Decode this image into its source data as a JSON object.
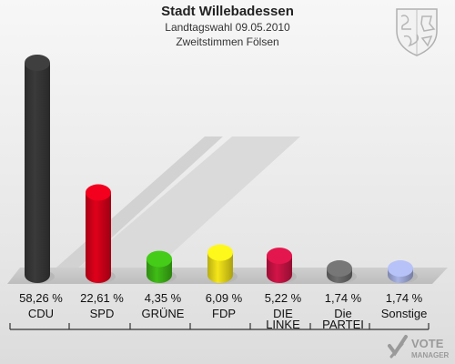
{
  "header": {
    "title": "Stadt Willebadessen",
    "subtitle": "Landtagswahl 09.05.2010",
    "subtitle2": "Zweitstimmen Fölsen"
  },
  "watermark": {
    "line1": "VOTE",
    "line2": "MANAGER"
  },
  "chart_data": {
    "type": "bar",
    "categories": [
      "CDU",
      "SPD",
      "GRÜNE",
      "FDP",
      "DIE LINKE",
      "Die PARTEI",
      "Sonstige"
    ],
    "category_lines": [
      [
        "CDU"
      ],
      [
        "SPD"
      ],
      [
        "GRÜNE"
      ],
      [
        "FDP"
      ],
      [
        "DIE",
        "LINKE"
      ],
      [
        "Die",
        "PARTEI"
      ],
      [
        "Sonstige"
      ]
    ],
    "values": [
      58.26,
      22.61,
      4.35,
      6.09,
      5.22,
      1.74,
      1.74
    ],
    "value_labels": [
      "58,26 %",
      "22,61 %",
      "4,35 %",
      "6,09 %",
      "5,22 %",
      "1,74 %",
      "1,74 %"
    ],
    "colors": [
      "#3a3a3a",
      "#e0001b",
      "#3fbd16",
      "#f5e619",
      "#d31448",
      "#6e6e6e",
      "#a9b4e6"
    ],
    "ylim": [
      0,
      60
    ]
  }
}
